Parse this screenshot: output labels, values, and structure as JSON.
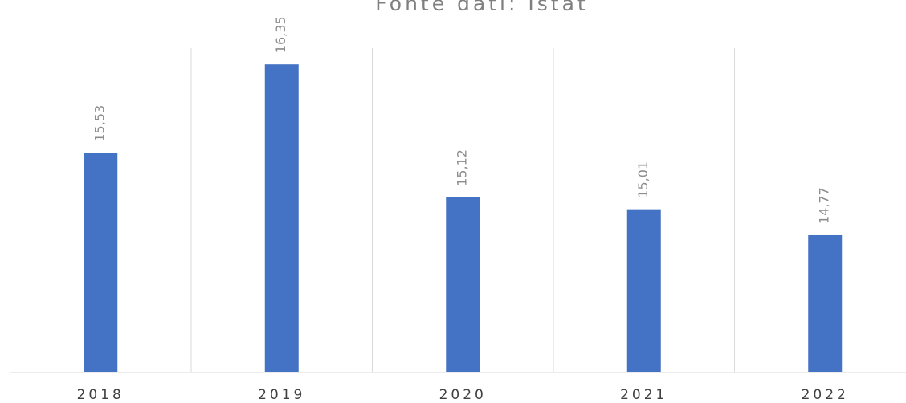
{
  "chart_data": {
    "type": "bar",
    "subtitle": "Fonte dati: Istat",
    "categories": [
      "2018",
      "2019",
      "2020",
      "2021",
      "2022"
    ],
    "values": [
      15.53,
      16.35,
      15.12,
      15.01,
      14.77
    ],
    "value_labels": [
      "15,53",
      "16,35",
      "15,12",
      "15,01",
      "14,77"
    ],
    "color": "#4472c4",
    "ylim": [
      13.5,
      16.5
    ],
    "grid": true
  }
}
